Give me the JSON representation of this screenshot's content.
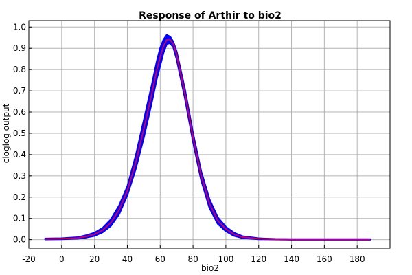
{
  "chart_data": {
    "type": "line",
    "title": "Response of Arthir to bio2",
    "xlabel": "bio2",
    "ylabel": "cloglog output",
    "xlim": [
      -20,
      200
    ],
    "ylim": [
      -0.04,
      1.03
    ],
    "x_ticks": [
      -20,
      0,
      20,
      40,
      60,
      80,
      100,
      120,
      140,
      160,
      180
    ],
    "y_ticks": [
      0.0,
      0.1,
      0.2,
      0.3,
      0.4,
      0.5,
      0.6,
      0.7,
      0.8,
      0.9,
      1.0
    ],
    "y_tick_labels": [
      "0.0",
      "0.1",
      "0.2",
      "0.3",
      "0.4",
      "0.5",
      "0.6",
      "0.7",
      "0.8",
      "0.9",
      "1.0"
    ],
    "grid": true,
    "colors": {
      "band": "#0000ff",
      "line": "#cc0055",
      "grid": "#b4b4b4"
    },
    "series": [
      {
        "role": "mean",
        "x": [
          -10,
          0,
          10,
          15,
          20,
          25,
          30,
          35,
          40,
          45,
          50,
          55,
          58,
          60,
          62,
          64,
          66,
          68,
          70,
          75,
          80,
          85,
          90,
          95,
          100,
          105,
          110,
          120,
          130,
          140,
          150,
          160,
          170,
          180,
          188
        ],
        "y": [
          0.003,
          0.004,
          0.008,
          0.015,
          0.025,
          0.045,
          0.08,
          0.14,
          0.23,
          0.36,
          0.52,
          0.69,
          0.8,
          0.86,
          0.91,
          0.94,
          0.94,
          0.92,
          0.87,
          0.69,
          0.48,
          0.3,
          0.17,
          0.09,
          0.05,
          0.025,
          0.012,
          0.004,
          0.002,
          0.001,
          0.001,
          0.001,
          0.001,
          0.001,
          0.001
        ]
      },
      {
        "role": "upper",
        "x": [
          -10,
          0,
          10,
          15,
          20,
          25,
          30,
          35,
          40,
          45,
          50,
          55,
          58,
          60,
          62,
          64,
          66,
          68,
          70,
          75,
          80,
          85,
          90,
          95,
          100,
          105,
          110,
          120,
          130,
          140,
          150,
          160,
          170,
          180,
          188
        ],
        "y": [
          0.005,
          0.006,
          0.011,
          0.02,
          0.032,
          0.055,
          0.095,
          0.16,
          0.25,
          0.39,
          0.56,
          0.73,
          0.84,
          0.9,
          0.94,
          0.962,
          0.955,
          0.93,
          0.885,
          0.71,
          0.5,
          0.32,
          0.19,
          0.105,
          0.06,
          0.032,
          0.016,
          0.006,
          0.003,
          0.002,
          0.002,
          0.002,
          0.002,
          0.002,
          0.002
        ]
      },
      {
        "role": "lower",
        "x": [
          -10,
          0,
          10,
          15,
          20,
          25,
          30,
          35,
          40,
          45,
          50,
          55,
          58,
          60,
          62,
          64,
          66,
          68,
          70,
          75,
          80,
          85,
          90,
          95,
          100,
          105,
          110,
          120,
          130,
          140,
          150,
          160,
          170,
          180,
          188
        ],
        "y": [
          0.001,
          0.002,
          0.005,
          0.01,
          0.018,
          0.035,
          0.065,
          0.12,
          0.21,
          0.33,
          0.48,
          0.65,
          0.76,
          0.82,
          0.88,
          0.92,
          0.925,
          0.905,
          0.85,
          0.67,
          0.46,
          0.28,
          0.15,
          0.075,
          0.04,
          0.018,
          0.008,
          0.002,
          0.001,
          0.0,
          0.0,
          0.0,
          0.0,
          0.0,
          0.0
        ]
      }
    ]
  }
}
